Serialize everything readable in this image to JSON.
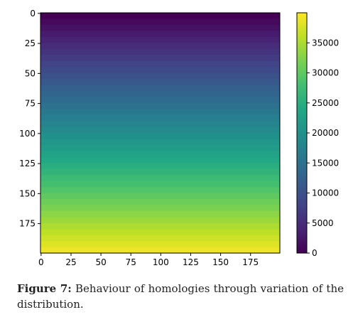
{
  "chart_data": {
    "type": "heatmap",
    "title": "",
    "xlabel": "",
    "ylabel": "",
    "x_range": [
      0,
      199
    ],
    "y_range": [
      0,
      199
    ],
    "y_inverted": true,
    "x_ticks": [
      0,
      25,
      50,
      75,
      100,
      125,
      150,
      175
    ],
    "y_ticks": [
      0,
      25,
      50,
      75,
      100,
      125,
      150,
      175
    ],
    "row_step": 5,
    "row_values": [
      0,
      1000,
      2000,
      3000,
      4000,
      5000,
      6000,
      7000,
      8000,
      9000,
      10000,
      11000,
      12000,
      13000,
      14000,
      15000,
      16000,
      17000,
      18000,
      19000,
      20000,
      21000,
      22000,
      23000,
      24000,
      25000,
      26000,
      27000,
      28000,
      29000,
      30000,
      31000,
      32000,
      33000,
      34000,
      35000,
      36000,
      37000,
      38000,
      39000
    ],
    "values_constant_across_x": true,
    "colormap": "viridis",
    "colorbar": {
      "range": [
        0,
        40000
      ],
      "ticks": [
        0,
        5000,
        10000,
        15000,
        20000,
        25000,
        30000,
        35000
      ],
      "tick_labels": [
        "0",
        "5000",
        "10000",
        "15000",
        "20000",
        "25000",
        "30000",
        "35000"
      ]
    },
    "grid": false
  },
  "caption": {
    "label": "Figure 7:",
    "text": "Behaviour of homologies through variation of the distribution."
  }
}
